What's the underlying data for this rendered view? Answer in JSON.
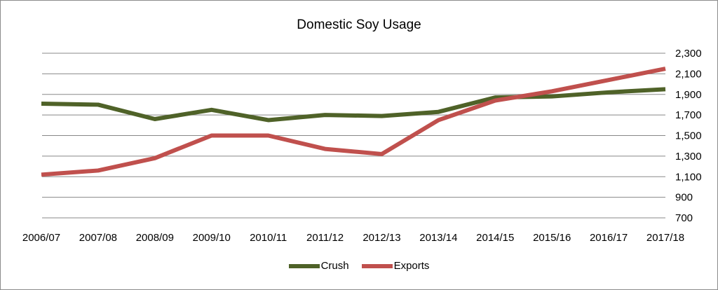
{
  "chart_data": {
    "type": "line",
    "title": "Domestic Soy Usage",
    "categories": [
      "2006/07",
      "2007/08",
      "2008/09",
      "2009/10",
      "2010/11",
      "2011/12",
      "2012/13",
      "2013/14",
      "2014/15",
      "2015/16",
      "2016/17",
      "2017/18"
    ],
    "series": [
      {
        "name": "Crush",
        "color": "#4f6228",
        "values": [
          1810,
          1800,
          1660,
          1750,
          1650,
          1700,
          1690,
          1730,
          1870,
          1880,
          1920,
          1950
        ]
      },
      {
        "name": "Exports",
        "color": "#c0504d",
        "values": [
          1120,
          1160,
          1280,
          1500,
          1500,
          1370,
          1320,
          1650,
          1840,
          1930,
          2040,
          2150
        ]
      }
    ],
    "ylim": [
      700,
      2300
    ],
    "yticks": [
      "700",
      "900",
      "1,100",
      "1,300",
      "1,500",
      "1,700",
      "1,900",
      "2,100",
      "2,300"
    ],
    "ytick_values": [
      700,
      900,
      1100,
      1300,
      1500,
      1700,
      1900,
      2100,
      2300
    ],
    "grid": true,
    "legend_position": "bottom"
  }
}
